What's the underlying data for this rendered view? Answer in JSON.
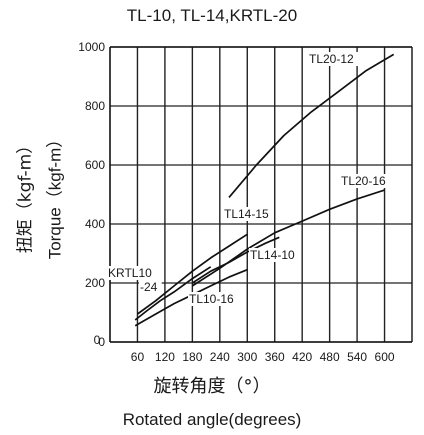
{
  "chart_data": {
    "type": "line",
    "title": "TL-10, TL-14,KRTL-20",
    "xlabel_zh": "旋转角度（°）",
    "xlabel": "Rotated angle(degrees)",
    "ylabel_zh": "扭矩（kgf-m）",
    "ylabel": "Torque（kgf-m）",
    "xlim": [
      0,
      660
    ],
    "ylim": [
      0,
      1000
    ],
    "x_ticks": [
      60,
      120,
      180,
      240,
      300,
      360,
      420,
      480,
      540,
      600
    ],
    "y_ticks": [
      0,
      200,
      400,
      600,
      800,
      1000
    ],
    "grid": true,
    "series": [
      {
        "name": "TL20-12",
        "x": [
          260,
          320,
          380,
          440,
          500,
          560,
          620
        ],
        "y": [
          490,
          600,
          700,
          780,
          850,
          920,
          975
        ]
      },
      {
        "name": "TL20-16",
        "x": [
          180,
          240,
          300,
          360,
          420,
          480,
          540,
          600
        ],
        "y": [
          190,
          250,
          315,
          370,
          410,
          450,
          485,
          515
        ]
      },
      {
        "name": "TL14-15",
        "x": [
          60,
          100,
          140,
          180,
          220,
          260,
          300
        ],
        "y": [
          95,
          140,
          190,
          240,
          285,
          325,
          365
        ]
      },
      {
        "name": "TL14-10",
        "x": [
          180,
          220,
          260,
          300,
          340,
          370
        ],
        "y": [
          200,
          240,
          270,
          305,
          335,
          355
        ]
      },
      {
        "name": "KRTL10-24",
        "x": [
          55,
          80,
          110,
          140,
          180,
          220
        ],
        "y": [
          75,
          105,
          140,
          170,
          215,
          255
        ]
      },
      {
        "name": "TL10-16",
        "x": [
          55,
          100,
          140,
          180,
          220,
          260,
          300
        ],
        "y": [
          55,
          95,
          130,
          160,
          190,
          220,
          245
        ]
      }
    ],
    "labels": [
      {
        "series": "TL20-12",
        "text": "TL20-12"
      },
      {
        "series": "TL20-16",
        "text": "TL20-16"
      },
      {
        "series": "TL14-15",
        "text": "TL14-15"
      },
      {
        "series": "TL14-10",
        "text": "TL14-10"
      },
      {
        "series": "KRTL10-24",
        "text": "KRTL10"
      },
      {
        "series": "KRTL10-24",
        "text": "-24"
      },
      {
        "series": "TL10-16",
        "text": "TL10-16"
      }
    ]
  }
}
